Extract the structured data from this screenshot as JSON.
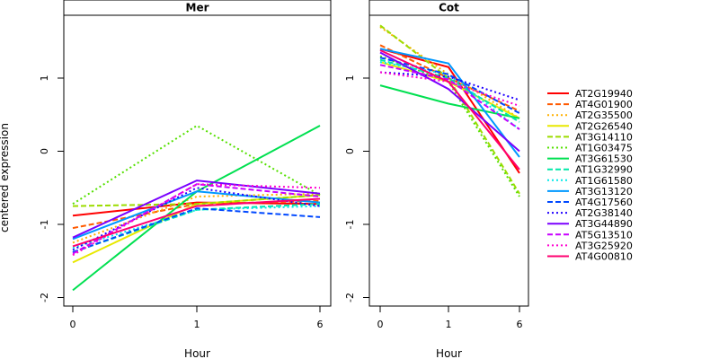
{
  "chart_data": {
    "type": "line",
    "ylabel": "centered expression",
    "xlabel": "Hour",
    "x_categories": [
      "0",
      "1",
      "6"
    ],
    "ylim": [
      -2,
      2
    ],
    "yticks": [
      "-2",
      "-1",
      "0",
      "1"
    ],
    "legend_position": "right",
    "series": [
      {
        "name": "AT2G19940",
        "color": "#ff0000",
        "dash": "solid"
      },
      {
        "name": "AT4G01900",
        "color": "#ff5a00",
        "dash": "dashed"
      },
      {
        "name": "AT2G35500",
        "color": "#ffb000",
        "dash": "dotted"
      },
      {
        "name": "AT2G26540",
        "color": "#e8e800",
        "dash": "solid"
      },
      {
        "name": "AT3G14110",
        "color": "#9cdc00",
        "dash": "dashed"
      },
      {
        "name": "AT1G03475",
        "color": "#55e000",
        "dash": "dotted"
      },
      {
        "name": "AT3G61530",
        "color": "#00e050",
        "dash": "solid"
      },
      {
        "name": "AT1G32990",
        "color": "#00e8a8",
        "dash": "dashed"
      },
      {
        "name": "AT1G61580",
        "color": "#00e8e8",
        "dash": "dotted"
      },
      {
        "name": "AT3G13120",
        "color": "#0098ff",
        "dash": "solid"
      },
      {
        "name": "AT4G17560",
        "color": "#0048ff",
        "dash": "dashed"
      },
      {
        "name": "AT2G38140",
        "color": "#2000ff",
        "dash": "dotted"
      },
      {
        "name": "AT3G44890",
        "color": "#7a00ff",
        "dash": "solid"
      },
      {
        "name": "AT5G13510",
        "color": "#c800ff",
        "dash": "dashed"
      },
      {
        "name": "AT3G25920",
        "color": "#ff00d0",
        "dash": "dotted"
      },
      {
        "name": "AT4G00810",
        "color": "#ff0070",
        "dash": "solid"
      }
    ],
    "panels": [
      {
        "title": "Mer",
        "values": [
          [
            -0.88,
            -0.7,
            -0.72
          ],
          [
            -1.05,
            -0.72,
            -0.68
          ],
          [
            -1.25,
            -0.62,
            -0.58
          ],
          [
            -1.52,
            -0.72,
            -0.6
          ],
          [
            -0.75,
            -0.72,
            -0.6
          ],
          [
            -0.72,
            0.35,
            -0.6
          ],
          [
            -1.9,
            -0.55,
            0.35
          ],
          [
            -1.38,
            -0.8,
            -0.72
          ],
          [
            -1.32,
            -0.8,
            -0.75
          ],
          [
            -1.2,
            -0.55,
            -0.7
          ],
          [
            -1.38,
            -0.78,
            -0.9
          ],
          [
            -1.35,
            -0.5,
            -0.75
          ],
          [
            -1.18,
            -0.4,
            -0.58
          ],
          [
            -1.4,
            -0.45,
            -0.62
          ],
          [
            -1.42,
            -0.45,
            -0.5
          ],
          [
            -1.3,
            -0.75,
            -0.65
          ]
        ]
      },
      {
        "title": "Cot",
        "values": [
          [
            1.4,
            1.15,
            -0.3
          ],
          [
            1.45,
            1.0,
            0.55
          ],
          [
            1.7,
            1.05,
            0.45
          ],
          [
            1.22,
            0.95,
            0.45
          ],
          [
            1.72,
            1.0,
            -0.58
          ],
          [
            1.3,
            0.95,
            -0.62
          ],
          [
            0.9,
            0.65,
            0.45
          ],
          [
            1.25,
            1.0,
            0.4
          ],
          [
            1.22,
            1.05,
            0.3
          ],
          [
            1.4,
            1.2,
            -0.08
          ],
          [
            1.28,
            1.05,
            0.52
          ],
          [
            1.08,
            1.02,
            0.7
          ],
          [
            1.35,
            0.85,
            0.0
          ],
          [
            1.18,
            0.98,
            0.3
          ],
          [
            1.08,
            0.95,
            0.62
          ],
          [
            1.38,
            0.95,
            -0.25
          ]
        ]
      }
    ]
  }
}
